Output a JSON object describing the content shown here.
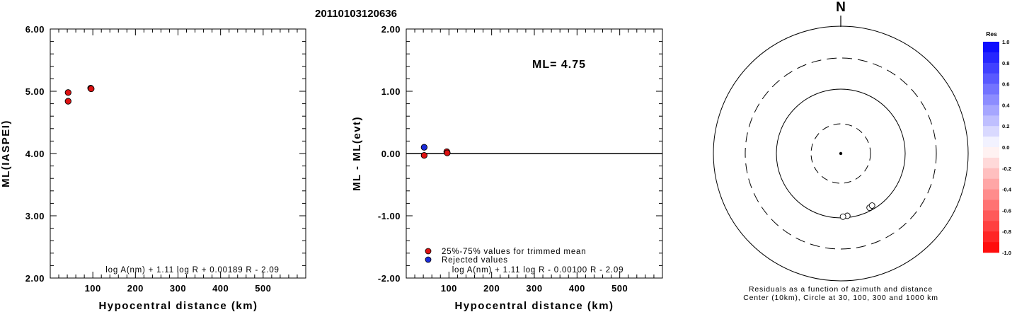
{
  "event_id": "20110103120636",
  "colors": {
    "accepted": "#dd1111",
    "rejected": "#1a2bd8",
    "marker_edge": "#000000"
  },
  "left_panel": {
    "chart_data": {
      "type": "scatter",
      "ylabel": "ML(IASPEI)",
      "xlabel": "Hypocentral distance (km)",
      "xlim": [
        0,
        600
      ],
      "ylim": [
        2.0,
        6.0
      ],
      "xticks": [
        100,
        200,
        300,
        400,
        500
      ],
      "yticks": [
        "2.00",
        "3.00",
        "4.00",
        "5.00",
        "6.00"
      ],
      "formula": "log A(nm) + 1.11 log R + 0.00189 R - 2.09",
      "points": [
        {
          "x": 42,
          "y": 4.98,
          "group": "accepted"
        },
        {
          "x": 42,
          "y": 4.84,
          "group": "accepted"
        },
        {
          "x": 95,
          "y": 5.05,
          "group": "accepted"
        },
        {
          "x": 96,
          "y": 5.04,
          "group": "accepted"
        }
      ]
    }
  },
  "middle_panel": {
    "chart_data": {
      "type": "scatter",
      "ylabel": "ML - ML(evt)",
      "xlabel": "Hypocentral distance (km)",
      "xlim": [
        0,
        600
      ],
      "ylim": [
        -2.0,
        2.0
      ],
      "xticks": [
        100,
        200,
        300,
        400,
        500
      ],
      "yticks": [
        "-2.00",
        "-1.00",
        "0.00",
        "1.00",
        "2.00"
      ],
      "reference_line": 0,
      "ml_label": "ML=  4.75",
      "legend": {
        "accepted": "25%-75% values for trimmed mean",
        "rejected": "Rejected values"
      },
      "formula": "log A(nm) + 1.11 log R - 0.00100 R - 2.09",
      "points": [
        {
          "x": 42,
          "y": 0.1,
          "group": "rejected"
        },
        {
          "x": 42,
          "y": -0.03,
          "group": "accepted"
        },
        {
          "x": 95,
          "y": 0.03,
          "group": "accepted"
        },
        {
          "x": 96,
          "y": 0.01,
          "group": "accepted"
        }
      ]
    }
  },
  "polar_panel": {
    "north_label": "N",
    "caption_line1": "Residuals as a function of azimuth and distance",
    "caption_line2": "Center (10km), Circle at 30, 100, 300 and 1000 km",
    "chart_data": {
      "type": "scatter",
      "coordinate_system": "polar",
      "rings_km": [
        30,
        100,
        300,
        1000
      ],
      "points": [
        {
          "azimuth_deg": 152,
          "distance_km": 90
        },
        {
          "azimuth_deg": 149,
          "distance_km": 88
        },
        {
          "azimuth_deg": 174,
          "distance_km": 94
        },
        {
          "azimuth_deg": 178,
          "distance_km": 96
        }
      ]
    }
  },
  "colorbar": {
    "title": "Res",
    "labels": [
      "1.0",
      "0.8",
      "0.6",
      "0.4",
      "0.2",
      "0.0",
      "-0.2",
      "-0.4",
      "-0.6",
      "-0.8",
      "-1.0"
    ]
  }
}
